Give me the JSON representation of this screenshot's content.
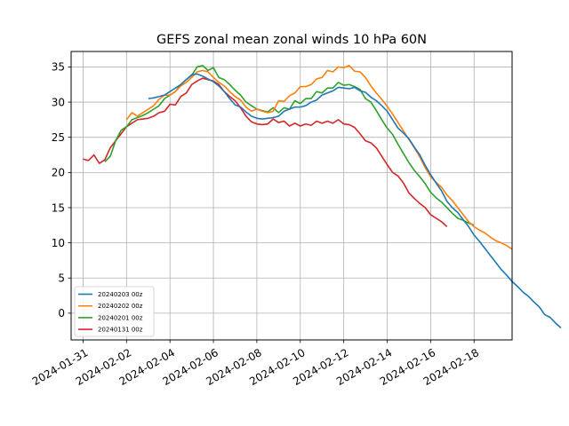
{
  "chart_data": {
    "type": "line",
    "title": "GEFS zonal mean zonal winds 10 hPa 60N",
    "xlabel": "",
    "ylabel": "",
    "x_start": "2024-01-31",
    "step_days": 0.25,
    "xlim": [
      "2024-01-31",
      "2024-02-19"
    ],
    "xlim_pad_days": [
      0.55,
      0.75
    ],
    "ylim": [
      -3.8,
      37.2
    ],
    "x_ticks": [
      "2024-01-31",
      "2024-02-02",
      "2024-02-04",
      "2024-02-06",
      "2024-02-08",
      "2024-02-10",
      "2024-02-12",
      "2024-02-14",
      "2024-02-16",
      "2024-02-18"
    ],
    "y_ticks": [
      "0",
      "5",
      "10",
      "15",
      "20",
      "25",
      "30",
      "35"
    ],
    "grid": true,
    "legend_position": "lower-left",
    "series": [
      {
        "name": "20240203 00z",
        "color": "#1f77b4",
        "start": "2024-02-03",
        "values": [
          30.5,
          30.6,
          30.8,
          31.0,
          31.5,
          32.0,
          32.5,
          33.2,
          33.9,
          34.0,
          33.7,
          33.3,
          32.9,
          32.3,
          31.5,
          30.5,
          29.6,
          29.3,
          28.6,
          28.0,
          27.7,
          27.6,
          27.7,
          27.8,
          28.0,
          28.7,
          29.0,
          29.3,
          29.3,
          29.5,
          30.0,
          30.3,
          31.0,
          31.3,
          31.6,
          32.1,
          32.0,
          31.9,
          32.1,
          31.6,
          31.4,
          30.7,
          30.2,
          29.5,
          28.7,
          27.5,
          26.3,
          25.6,
          24.8,
          23.6,
          22.5,
          21.0,
          19.7,
          18.5,
          17.4,
          15.9,
          15.0,
          14.3,
          13.3,
          12.3,
          11.1,
          10.2,
          9.2,
          8.2,
          7.2,
          6.2,
          5.4,
          4.5,
          3.8,
          3.0,
          2.4,
          1.6,
          0.9,
          -0.2,
          -0.6,
          -1.4,
          -2.1
        ]
      },
      {
        "name": "20240202 00z",
        "color": "#ff7f0e",
        "start": "2024-02-02",
        "values": [
          27.5,
          28.5,
          28.0,
          28.5,
          29.0,
          29.5,
          30.4,
          31.0,
          31.0,
          31.5,
          32.3,
          32.8,
          33.5,
          34.3,
          34.5,
          34.3,
          33.5,
          32.8,
          32.3,
          31.5,
          30.8,
          30.3,
          29.3,
          28.7,
          29.0,
          28.7,
          28.5,
          28.7,
          30.2,
          30.1,
          30.9,
          31.3,
          32.2,
          32.2,
          32.5,
          33.3,
          33.5,
          34.5,
          34.3,
          35.0,
          34.9,
          35.2,
          34.4,
          34.3,
          33.5,
          32.3,
          31.3,
          30.4,
          29.4,
          28.3,
          27.1,
          25.9,
          24.7,
          23.5,
          22.2,
          20.7,
          19.4,
          18.6,
          17.9,
          16.8,
          16.0,
          15.0,
          14.0,
          13.0,
          12.3,
          11.8,
          11.4,
          10.8,
          10.3,
          10.0,
          9.6,
          9.1
        ]
      },
      {
        "name": "20240201 00z",
        "color": "#2ca02c",
        "start": "2024-02-01",
        "values": [
          21.5,
          22.3,
          24.5,
          26.0,
          26.5,
          27.5,
          27.8,
          28.1,
          28.5,
          29.0,
          29.5,
          30.5,
          31.0,
          31.5,
          32.5,
          33.2,
          33.8,
          35.0,
          35.2,
          34.5,
          34.9,
          33.5,
          33.2,
          32.5,
          31.7,
          31.0,
          30.0,
          29.5,
          29.0,
          28.8,
          28.6,
          29.2,
          28.5,
          29.2,
          29.0,
          30.2,
          29.8,
          30.5,
          30.5,
          31.5,
          31.3,
          32.0,
          32.0,
          32.8,
          32.4,
          32.5,
          32.2,
          31.8,
          30.5,
          30.0,
          28.8,
          27.5,
          26.3,
          25.4,
          24.0,
          22.7,
          21.4,
          20.3,
          19.4,
          18.4,
          17.2,
          16.4,
          15.8,
          15.0,
          14.2,
          13.5,
          13.2,
          12.8,
          12.5
        ]
      },
      {
        "name": "20240131 00z",
        "color": "#d62728",
        "start": "2024-01-31",
        "values": [
          21.9,
          21.7,
          22.5,
          21.3,
          21.8,
          23.5,
          24.5,
          25.5,
          26.5,
          27.0,
          27.5,
          27.6,
          27.7,
          28.0,
          28.5,
          28.7,
          29.7,
          29.6,
          30.8,
          31.3,
          32.5,
          33.0,
          33.4,
          33.2,
          33.0,
          32.5,
          31.5,
          30.8,
          30.2,
          29.2,
          28.0,
          27.2,
          26.9,
          26.8,
          26.9,
          27.6,
          27.1,
          27.3,
          26.6,
          27.0,
          26.6,
          26.9,
          26.7,
          27.3,
          27.0,
          27.3,
          27.0,
          27.5,
          26.9,
          26.8,
          26.4,
          25.5,
          24.5,
          24.2,
          23.5,
          22.3,
          21.1,
          20.0,
          19.5,
          18.5,
          17.1,
          16.3,
          15.6,
          15.0,
          14.0,
          13.5,
          13.0,
          12.3
        ]
      }
    ]
  }
}
